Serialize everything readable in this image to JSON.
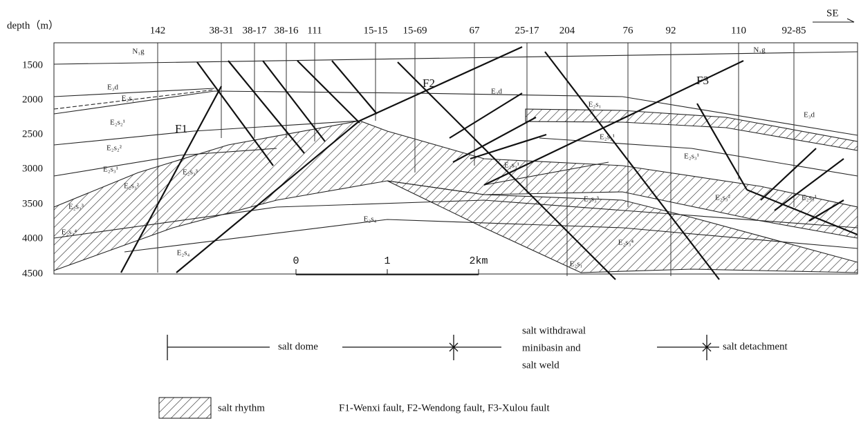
{
  "axis_label": "depth（m）",
  "direction": "SE",
  "depth_ticks": [
    1500,
    2000,
    2500,
    3000,
    3500,
    4000,
    4500
  ],
  "wells": [
    "142",
    "38-31",
    "38-17",
    "38-16",
    "111",
    "15-15",
    "15-69",
    "67",
    "25-17",
    "204",
    "76",
    "92",
    "110",
    "92-85"
  ],
  "faults": [
    "F1",
    "F2",
    "F3"
  ],
  "formations": [
    "N₁g",
    "N₁g",
    "E₃d",
    "E₂s₁",
    "E₂s₂¹",
    "E₂s₂²",
    "E₂s₃¹",
    "E₂s₃²",
    "E₂s₃³",
    "E₂s₃⁴",
    "E₂s₄",
    "E₂s₃³",
    "E₂s₄",
    "E₃d",
    "E₂s₁",
    "E₂s₂¹",
    "E₂s₃¹",
    "E₂s₃²",
    "E₂s₃³",
    "E₂s₃⁴",
    "E₂s₁",
    "E₃d",
    "E₂s₃¹",
    "E₂s₃¹"
  ],
  "scale_bar": [
    "0",
    "1",
    "2km"
  ],
  "zones": {
    "salt_dome": "salt dome",
    "minibasin": [
      "salt withdrawal",
      "minibasin and",
      "salt weld"
    ],
    "detachment": "salt detachment"
  },
  "legend": "salt rhythm",
  "caption": "F1-Wenxi fault, F2-Wendong fault, F3-Xulou fault"
}
